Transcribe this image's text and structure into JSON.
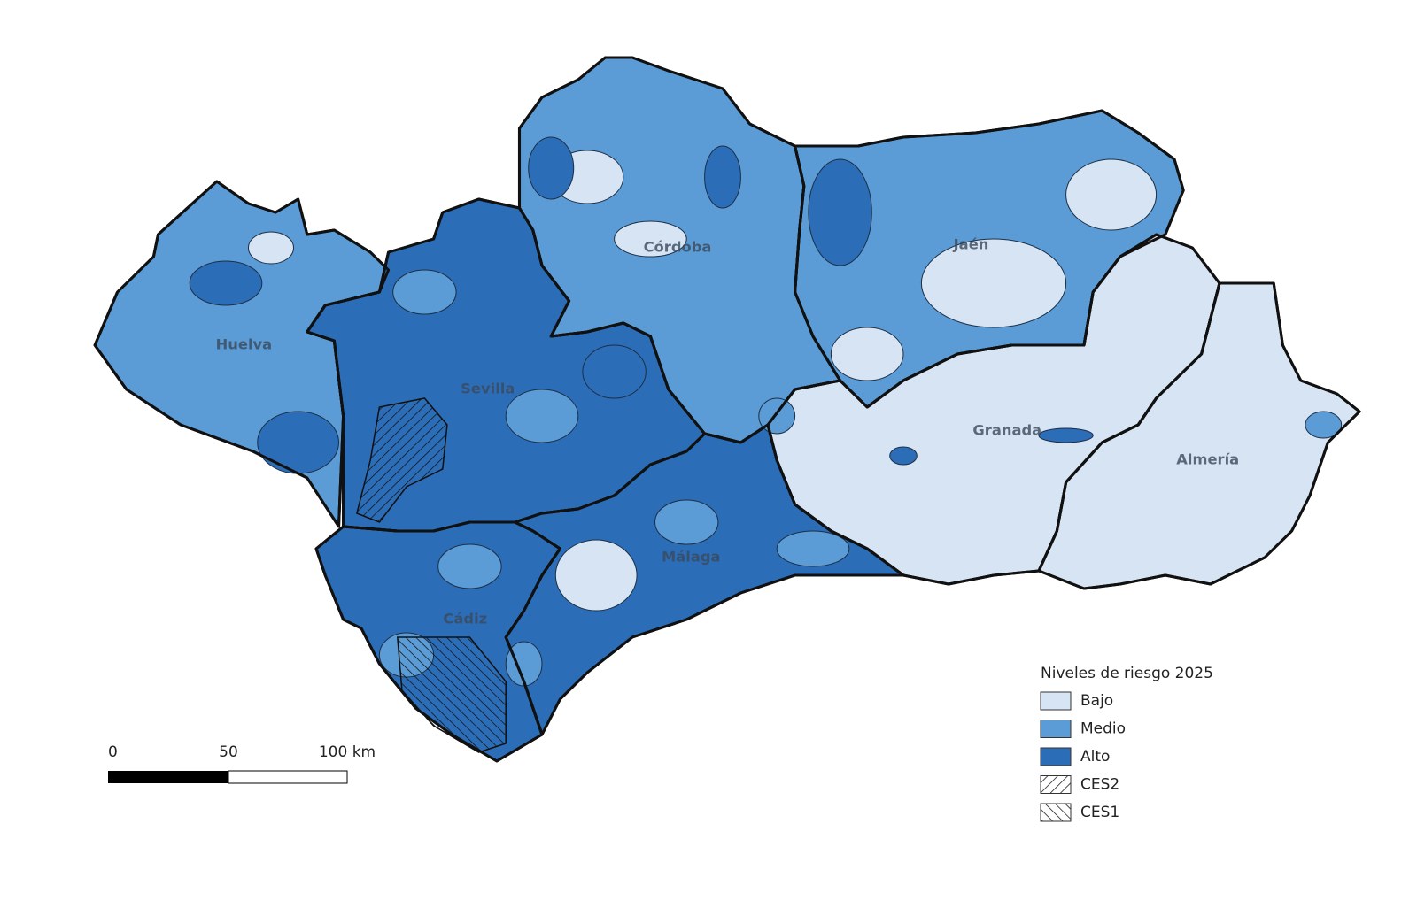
{
  "map": {
    "provinces": [
      "Huelva",
      "Sevilla",
      "Córdoba",
      "Jaén",
      "Granada",
      "Almería",
      "Málaga",
      "Cádiz"
    ],
    "legend": {
      "title": "Niveles de riesgo 2025",
      "items": [
        "Bajo",
        "Medio",
        "Alto",
        "CES2",
        "CES1"
      ]
    },
    "scale_bar": {
      "labels": [
        "0",
        "50",
        "100 km"
      ]
    }
  }
}
